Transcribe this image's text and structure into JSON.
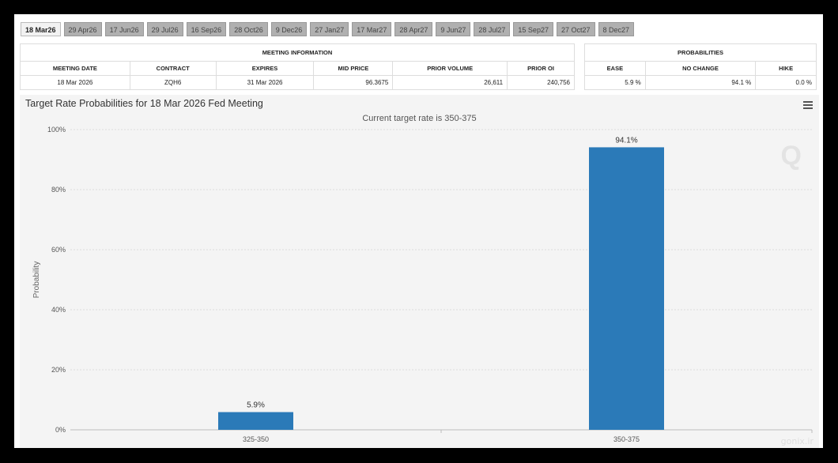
{
  "tabs": [
    "18 Mar26",
    "29 Apr26",
    "17 Jun26",
    "29 Jul26",
    "16 Sep26",
    "28 Oct26",
    "9 Dec26",
    "27 Jan27",
    "17 Mar27",
    "28 Apr27",
    "9 Jun27",
    "28 Jul27",
    "15 Sep27",
    "27 Oct27",
    "8 Dec27"
  ],
  "meeting_info": {
    "caption": "MEETING INFORMATION",
    "headers": [
      "MEETING DATE",
      "CONTRACT",
      "EXPIRES",
      "MID PRICE",
      "PRIOR VOLUME",
      "PRIOR OI"
    ],
    "row": [
      "18 Mar 2026",
      "ZQH6",
      "31 Mar 2026",
      "96.3675",
      "26,611",
      "240,756"
    ]
  },
  "probabilities": {
    "caption": "PROBABILITIES",
    "headers": [
      "EASE",
      "NO CHANGE",
      "HIKE"
    ],
    "row": [
      "5.9 %",
      "94.1 %",
      "0.0 %"
    ]
  },
  "chart": {
    "title": "Target Rate Probabilities for 18 Mar 2026 Fed Meeting",
    "subtitle": "Current target rate is 350-375"
  },
  "chart_data": {
    "type": "bar",
    "title": "Target Rate Probabilities for 18 Mar 2026 Fed Meeting",
    "subtitle": "Current target rate is 350-375",
    "categories": [
      "325-350",
      "350-375"
    ],
    "values": [
      5.9,
      94.1
    ],
    "data_labels": [
      "5.9%",
      "94.1%"
    ],
    "ylabel": "Probability",
    "xlabel": "",
    "ylim": [
      0,
      100
    ],
    "yticks": [
      "0%",
      "20%",
      "40%",
      "60%",
      "80%",
      "100%"
    ],
    "grid": true,
    "bar_color": "#2b7ab8"
  },
  "footer": "gonix.ir"
}
